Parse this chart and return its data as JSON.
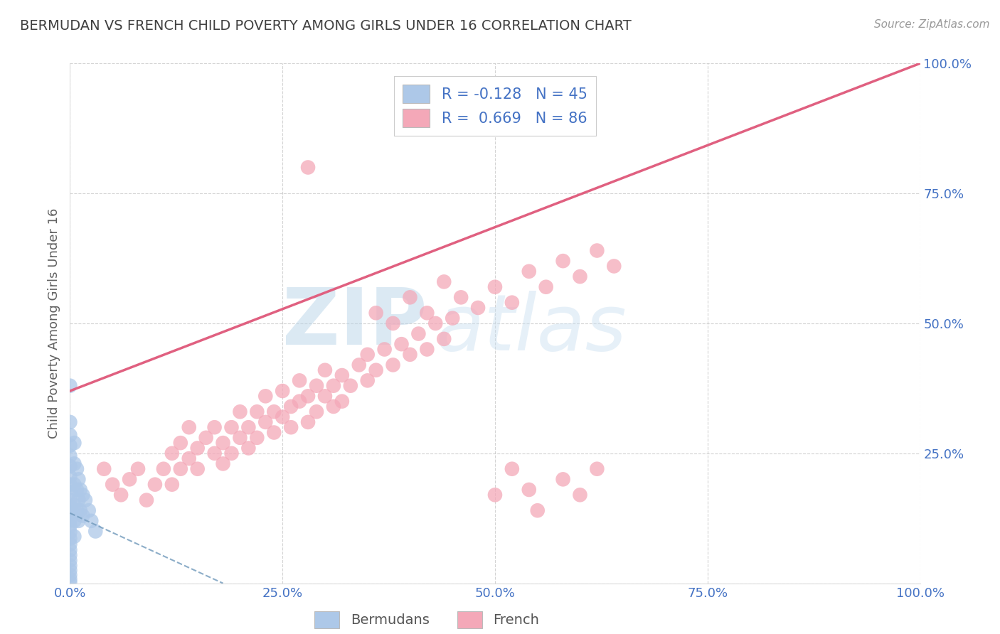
{
  "title": "BERMUDAN VS FRENCH CHILD POVERTY AMONG GIRLS UNDER 16 CORRELATION CHART",
  "source": "Source: ZipAtlas.com",
  "ylabel": "Child Poverty Among Girls Under 16",
  "watermark_zip": "ZIP",
  "watermark_atlas": "atlas",
  "bermuda_R": -0.128,
  "bermuda_N": 45,
  "french_R": 0.669,
  "french_N": 86,
  "bermuda_color": "#adc8e8",
  "french_color": "#f4a8b8",
  "bermuda_line_color": "#7099bb",
  "french_line_color": "#e06080",
  "background_color": "#ffffff",
  "grid_color": "#c8c8c8",
  "title_color": "#404040",
  "axis_label_color": "#606060",
  "tick_label_color": "#4472c4",
  "legend_R_color": "#4472c4",
  "xlim": [
    0,
    1
  ],
  "ylim": [
    0,
    1
  ],
  "xtick_labels": [
    "0.0%",
    "25.0%",
    "50.0%",
    "75.0%",
    "100.0%"
  ],
  "xtick_values": [
    0,
    0.25,
    0.5,
    0.75,
    1.0
  ],
  "ytick_labels": [
    "100.0%",
    "75.0%",
    "50.0%",
    "25.0%"
  ],
  "ytick_values": [
    1.0,
    0.75,
    0.5,
    0.25
  ],
  "french_line_x0": 0.0,
  "french_line_y0": 0.37,
  "french_line_x1": 1.0,
  "french_line_y1": 1.0,
  "bermuda_line_x0": 0.0,
  "bermuda_line_y0": 0.135,
  "bermuda_line_x1": 0.18,
  "bermuda_line_y1": 0.0,
  "bermuda_points": [
    [
      0.0,
      0.38
    ],
    [
      0.0,
      0.31
    ],
    [
      0.0,
      0.285
    ],
    [
      0.0,
      0.265
    ],
    [
      0.0,
      0.245
    ],
    [
      0.0,
      0.225
    ],
    [
      0.0,
      0.205
    ],
    [
      0.0,
      0.19
    ],
    [
      0.0,
      0.175
    ],
    [
      0.0,
      0.16
    ],
    [
      0.0,
      0.147
    ],
    [
      0.0,
      0.135
    ],
    [
      0.0,
      0.122
    ],
    [
      0.0,
      0.11
    ],
    [
      0.0,
      0.098
    ],
    [
      0.0,
      0.086
    ],
    [
      0.0,
      0.075
    ],
    [
      0.0,
      0.064
    ],
    [
      0.0,
      0.054
    ],
    [
      0.0,
      0.044
    ],
    [
      0.0,
      0.034
    ],
    [
      0.0,
      0.025
    ],
    [
      0.0,
      0.016
    ],
    [
      0.0,
      0.008
    ],
    [
      0.0,
      0.002
    ],
    [
      0.005,
      0.27
    ],
    [
      0.005,
      0.23
    ],
    [
      0.005,
      0.19
    ],
    [
      0.005,
      0.15
    ],
    [
      0.005,
      0.12
    ],
    [
      0.005,
      0.09
    ],
    [
      0.008,
      0.22
    ],
    [
      0.008,
      0.18
    ],
    [
      0.008,
      0.14
    ],
    [
      0.01,
      0.2
    ],
    [
      0.01,
      0.16
    ],
    [
      0.01,
      0.12
    ],
    [
      0.012,
      0.18
    ],
    [
      0.012,
      0.14
    ],
    [
      0.015,
      0.17
    ],
    [
      0.015,
      0.13
    ],
    [
      0.018,
      0.16
    ],
    [
      0.022,
      0.14
    ],
    [
      0.025,
      0.12
    ],
    [
      0.03,
      0.1
    ]
  ],
  "french_points": [
    [
      0.04,
      0.22
    ],
    [
      0.05,
      0.19
    ],
    [
      0.06,
      0.17
    ],
    [
      0.07,
      0.2
    ],
    [
      0.08,
      0.22
    ],
    [
      0.09,
      0.16
    ],
    [
      0.1,
      0.19
    ],
    [
      0.11,
      0.22
    ],
    [
      0.12,
      0.25
    ],
    [
      0.12,
      0.19
    ],
    [
      0.13,
      0.22
    ],
    [
      0.13,
      0.27
    ],
    [
      0.14,
      0.24
    ],
    [
      0.14,
      0.3
    ],
    [
      0.15,
      0.26
    ],
    [
      0.15,
      0.22
    ],
    [
      0.16,
      0.28
    ],
    [
      0.17,
      0.25
    ],
    [
      0.17,
      0.3
    ],
    [
      0.18,
      0.27
    ],
    [
      0.18,
      0.23
    ],
    [
      0.19,
      0.3
    ],
    [
      0.19,
      0.25
    ],
    [
      0.2,
      0.28
    ],
    [
      0.2,
      0.33
    ],
    [
      0.21,
      0.3
    ],
    [
      0.21,
      0.26
    ],
    [
      0.22,
      0.33
    ],
    [
      0.22,
      0.28
    ],
    [
      0.23,
      0.31
    ],
    [
      0.23,
      0.36
    ],
    [
      0.24,
      0.33
    ],
    [
      0.24,
      0.29
    ],
    [
      0.25,
      0.32
    ],
    [
      0.25,
      0.37
    ],
    [
      0.26,
      0.34
    ],
    [
      0.26,
      0.3
    ],
    [
      0.27,
      0.35
    ],
    [
      0.27,
      0.39
    ],
    [
      0.28,
      0.36
    ],
    [
      0.28,
      0.31
    ],
    [
      0.29,
      0.38
    ],
    [
      0.29,
      0.33
    ],
    [
      0.3,
      0.36
    ],
    [
      0.3,
      0.41
    ],
    [
      0.31,
      0.38
    ],
    [
      0.31,
      0.34
    ],
    [
      0.32,
      0.4
    ],
    [
      0.32,
      0.35
    ],
    [
      0.33,
      0.38
    ],
    [
      0.34,
      0.42
    ],
    [
      0.35,
      0.39
    ],
    [
      0.35,
      0.44
    ],
    [
      0.36,
      0.41
    ],
    [
      0.37,
      0.45
    ],
    [
      0.38,
      0.42
    ],
    [
      0.39,
      0.46
    ],
    [
      0.4,
      0.44
    ],
    [
      0.41,
      0.48
    ],
    [
      0.42,
      0.45
    ],
    [
      0.43,
      0.5
    ],
    [
      0.44,
      0.47
    ],
    [
      0.45,
      0.51
    ],
    [
      0.28,
      0.8
    ],
    [
      0.5,
      0.17
    ],
    [
      0.52,
      0.22
    ],
    [
      0.54,
      0.18
    ],
    [
      0.55,
      0.14
    ],
    [
      0.58,
      0.2
    ],
    [
      0.6,
      0.17
    ],
    [
      0.62,
      0.22
    ],
    [
      0.36,
      0.52
    ],
    [
      0.38,
      0.5
    ],
    [
      0.4,
      0.55
    ],
    [
      0.42,
      0.52
    ],
    [
      0.44,
      0.58
    ],
    [
      0.46,
      0.55
    ],
    [
      0.48,
      0.53
    ],
    [
      0.5,
      0.57
    ],
    [
      0.52,
      0.54
    ],
    [
      0.54,
      0.6
    ],
    [
      0.56,
      0.57
    ],
    [
      0.58,
      0.62
    ],
    [
      0.6,
      0.59
    ],
    [
      0.62,
      0.64
    ],
    [
      0.64,
      0.61
    ]
  ]
}
